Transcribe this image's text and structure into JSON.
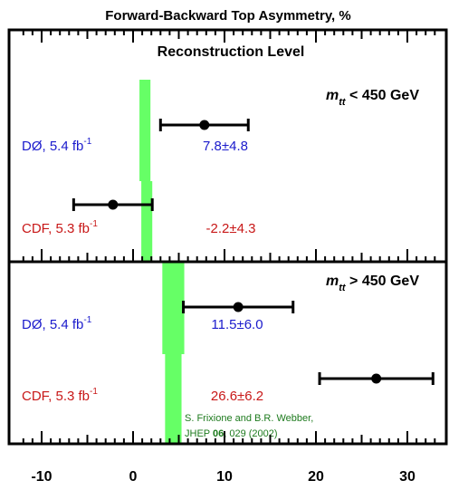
{
  "chart_data": {
    "type": "scatter",
    "title": "Forward-Backward Top Asymmetry, %",
    "xlim": [
      -12,
      33
    ],
    "x_ticks": [
      "-10",
      "0",
      "10",
      "20",
      "30"
    ],
    "x_tick_values": [
      -10,
      0,
      10,
      20,
      30
    ],
    "panels": [
      {
        "header": "Reconstruction Level",
        "mass_var": "m",
        "mass_sub": "tt",
        "mass_cut": "< 450 GeV",
        "theory_band": {
          "label": "S. Frixione and B.R. Webber",
          "center": 1.3,
          "half_width": 0.6
        },
        "measurements": [
          {
            "experiment": "DØ, 5.4 fb",
            "sup": "-1",
            "value": 7.8,
            "error": 4.8,
            "text": "7.8±4.8",
            "color": "#1a1acc"
          },
          {
            "experiment": "CDF, 5.3 fb",
            "sup": "-1",
            "value": -2.2,
            "error": 4.3,
            "text": "-2.2±4.3",
            "color": "#c81818"
          }
        ]
      },
      {
        "header": "",
        "mass_var": "m",
        "mass_sub": "tt",
        "mass_cut": "> 450 GeV",
        "theory_band": {
          "center": 4.4,
          "half_width_upper": 1.2,
          "half_width_lower": 0.9
        },
        "measurements": [
          {
            "experiment": "DØ, 5.4 fb",
            "sup": "-1",
            "value": 11.5,
            "error": 6.0,
            "text": "11.5±6.0",
            "color": "#1a1acc"
          },
          {
            "experiment": "CDF, 5.3 fb",
            "sup": "-1",
            "value": 26.6,
            "error": 6.2,
            "text": "26.6±6.2",
            "color": "#c81818"
          }
        ]
      }
    ],
    "reference": {
      "line1": "S. Frixione and B.R. Webber,",
      "line2_prefix": "JHEP ",
      "line2_bold": "06",
      "line2_suffix": ", 029 (2002)"
    },
    "band_color": "#66ff66"
  }
}
